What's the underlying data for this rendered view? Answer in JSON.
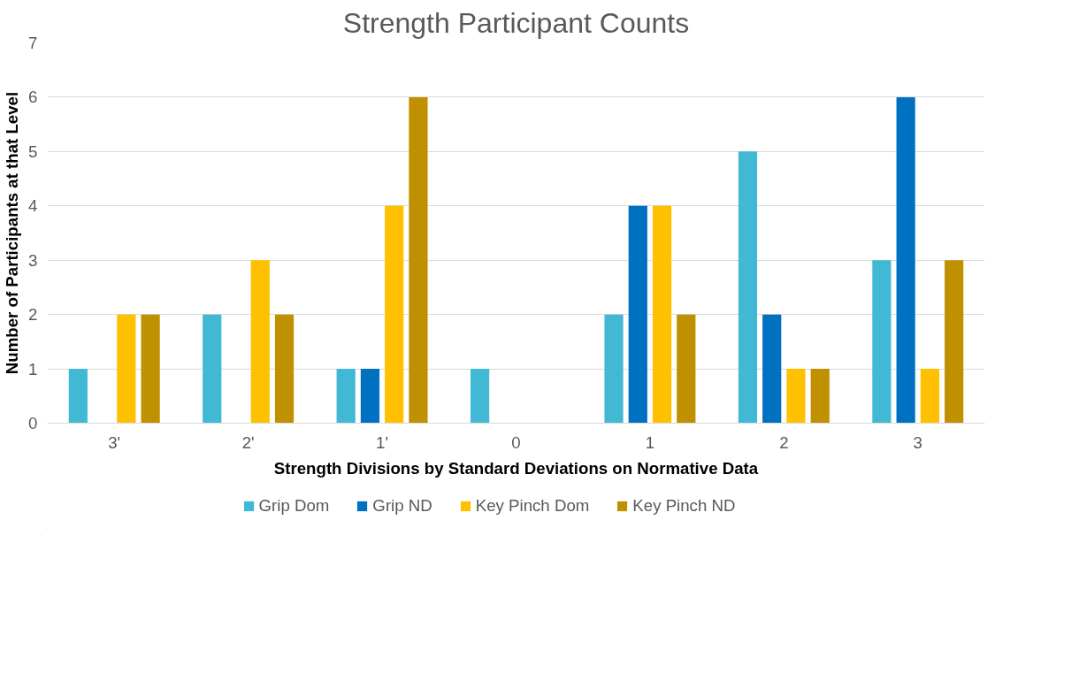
{
  "chart_data": {
    "type": "bar",
    "title": "Strength Participant Counts",
    "xlabel": "Strength Divisions by Standard Deviations on Normative Data",
    "ylabel": "Number of Participants at that Level",
    "categories": [
      "3'",
      "2'",
      "1'",
      "0",
      "1",
      "2",
      "3"
    ],
    "series": [
      {
        "name": "Grip Dom",
        "color": "#41b9d4",
        "values": [
          1,
          2,
          1,
          1,
          2,
          5,
          3
        ]
      },
      {
        "name": "Grip ND",
        "color": "#0070c0",
        "values": [
          0,
          0,
          1,
          0,
          4,
          2,
          6
        ]
      },
      {
        "name": "Key Pinch Dom",
        "color": "#ffc000",
        "values": [
          2,
          3,
          4,
          0,
          4,
          1,
          1
        ]
      },
      {
        "name": "Key Pinch ND",
        "color": "#bf9000",
        "values": [
          2,
          2,
          6,
          0,
          2,
          1,
          3
        ]
      }
    ],
    "ylim": [
      0,
      7
    ],
    "yticks": [
      0,
      1,
      2,
      3,
      4,
      5,
      6,
      7
    ],
    "grid": "y",
    "legend": "bottom"
  }
}
